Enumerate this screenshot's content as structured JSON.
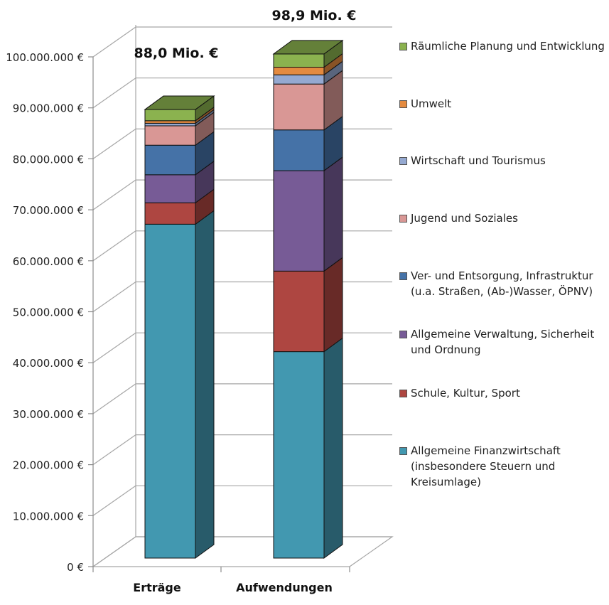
{
  "chart_data": {
    "type": "bar",
    "stacked": true,
    "three_d": true,
    "categories": [
      "Erträge",
      "Aufwendungen"
    ],
    "ylim": [
      0,
      100000000
    ],
    "y_ticks": [
      0,
      10000000,
      20000000,
      30000000,
      40000000,
      50000000,
      60000000,
      70000000,
      80000000,
      90000000,
      100000000
    ],
    "y_tick_labels": [
      "0 €",
      "10.000.000 €",
      "20.000.000 €",
      "30.000.000 €",
      "40.000.000 €",
      "50.000.000 €",
      "60.000.000 €",
      "70.000.000 €",
      "80.000.000 €",
      "90.000.000 €",
      "100.000.000 €"
    ],
    "totals": [
      "88,0 Mio. €",
      "98,9 Mio. €"
    ],
    "grid": true,
    "legend_position": "right",
    "series": [
      {
        "name": "Allgemeine Finanzwirtschaft (insbesondere Steuern und Kreisumlage)",
        "values": [
          65500000,
          40500000
        ],
        "color": "#4298b0"
      },
      {
        "name": "Schule, Kultur, Sport",
        "values": [
          4200000,
          15800000
        ],
        "color": "#ae4641"
      },
      {
        "name": "Allgemeine Verwaltung, Sicherheit und Ordnung",
        "values": [
          5500000,
          19700000
        ],
        "color": "#775b96"
      },
      {
        "name": "Ver- und Entsorgung, Infrastruktur (u.a. Straßen, (Ab-)Wasser, ÖPNV)",
        "values": [
          5800000,
          8000000
        ],
        "color": "#4572a7"
      },
      {
        "name": "Jugend und Soziales",
        "values": [
          3800000,
          9000000
        ],
        "color": "#d99795"
      },
      {
        "name": "Wirtschaft und Tourismus",
        "values": [
          500000,
          1800000
        ],
        "color": "#95a9d1"
      },
      {
        "name": "Umwelt",
        "values": [
          500000,
          1500000
        ],
        "color": "#e48a3f"
      },
      {
        "name": "Räumliche Planung und Entwicklung",
        "values": [
          2200000,
          2600000
        ],
        "color": "#8bb24f"
      }
    ]
  }
}
